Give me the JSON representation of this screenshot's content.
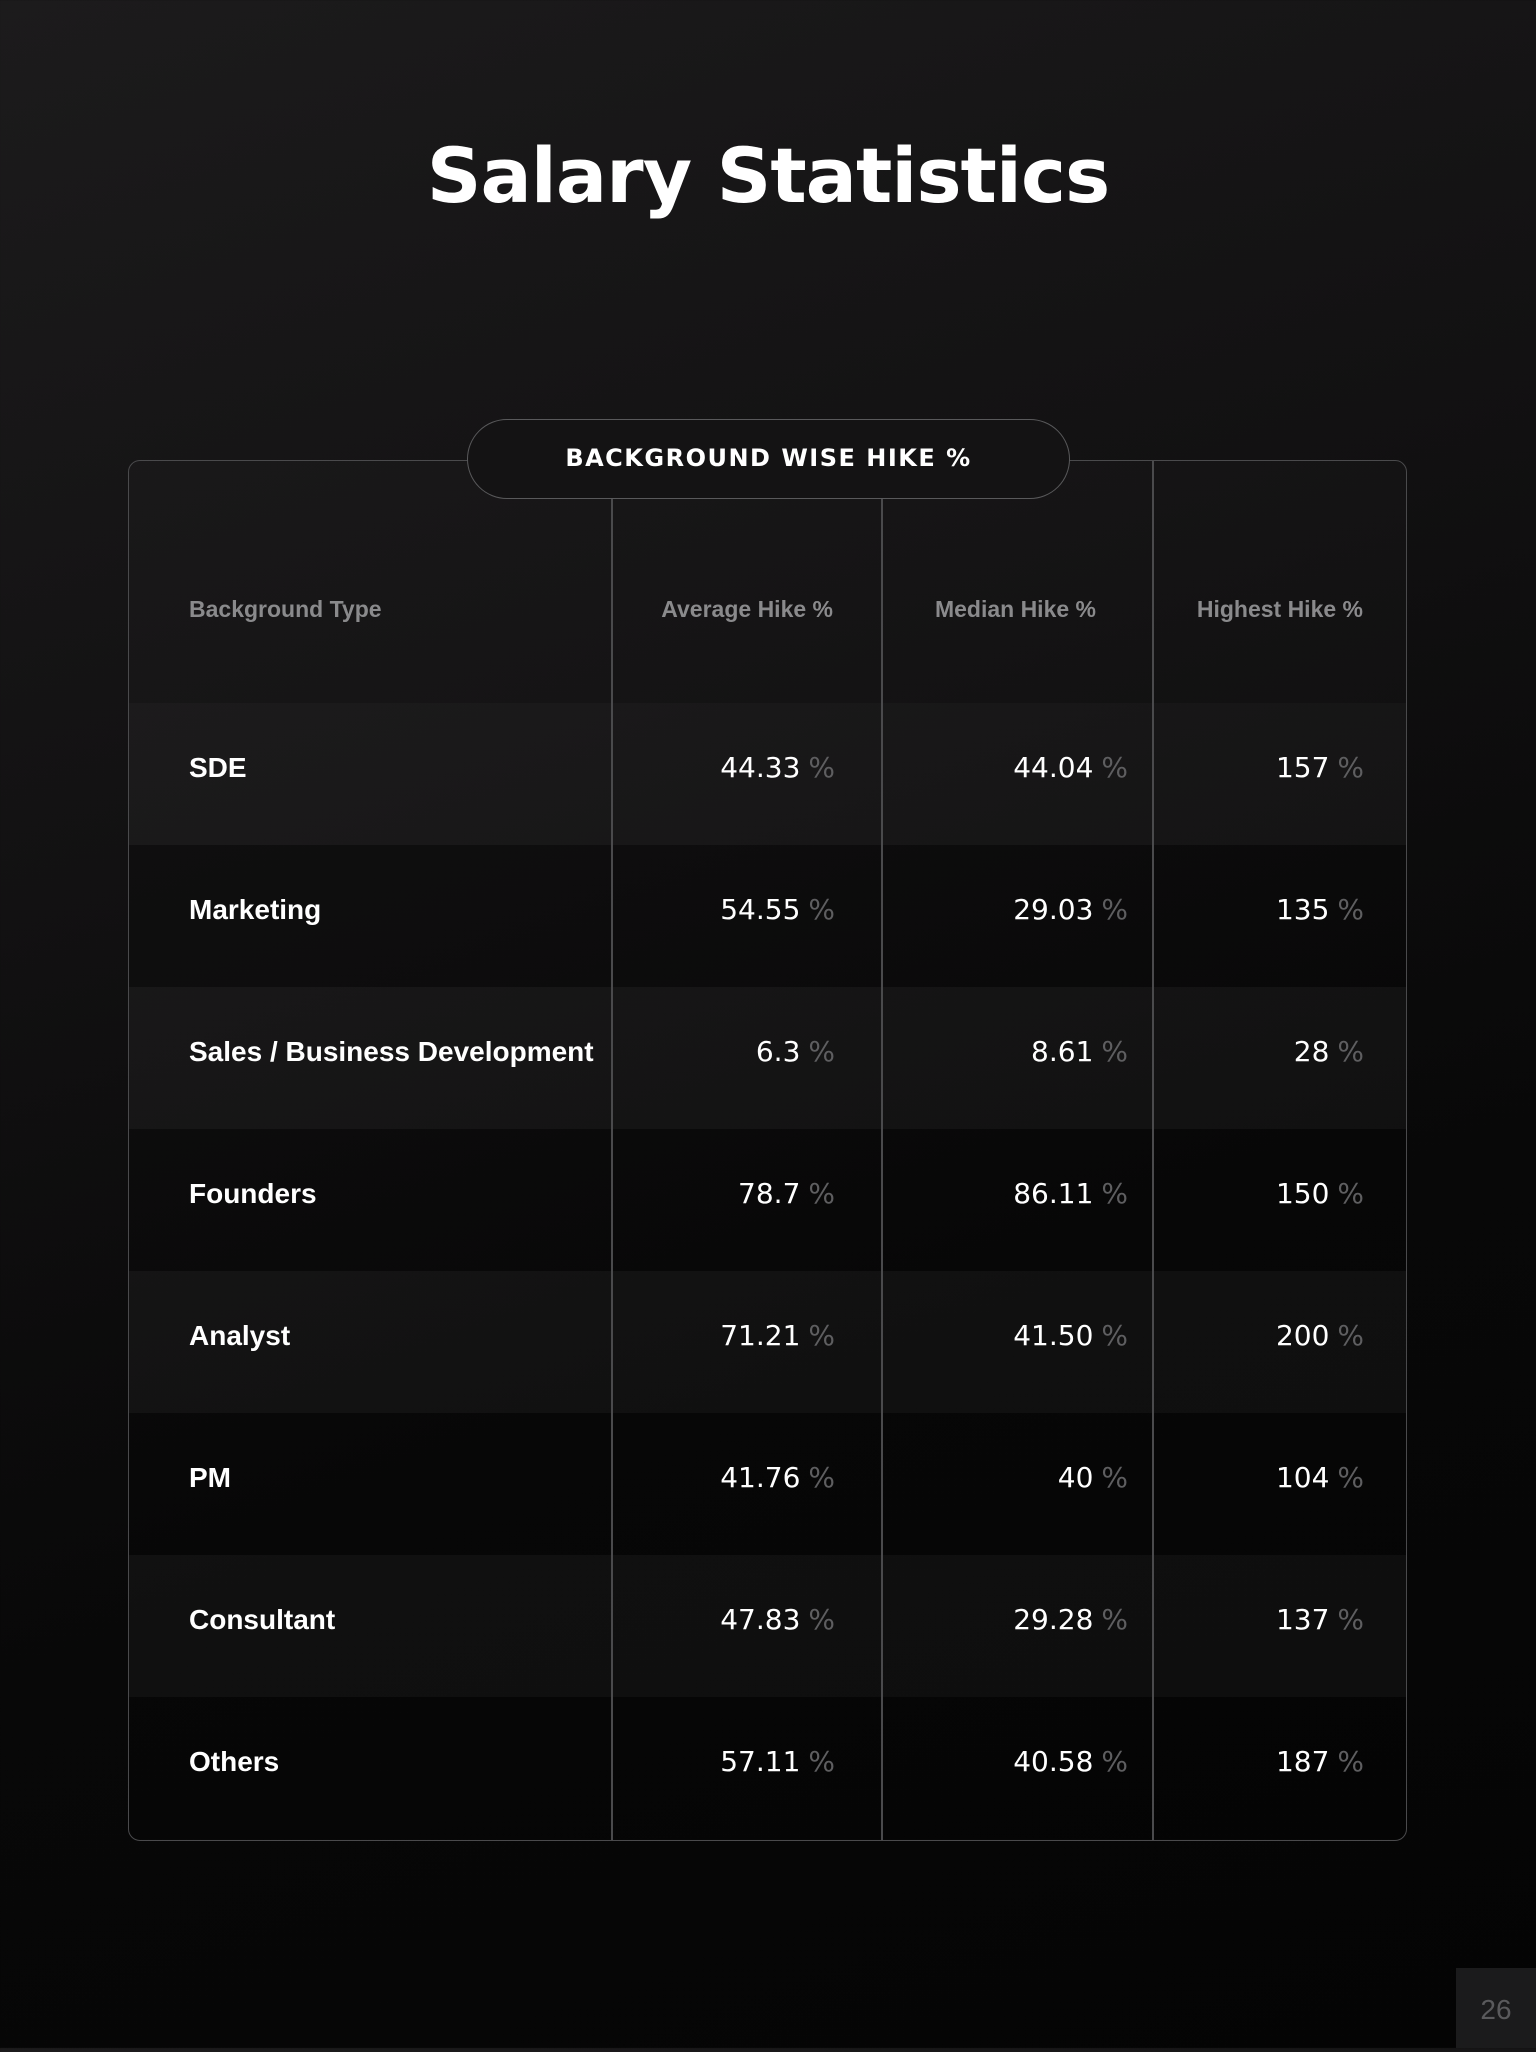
{
  "title": "Salary Statistics",
  "table_label": "BACKGROUND WISE HIKE %",
  "columns": [
    "Background Type",
    "Average Hike %",
    "Median Hike %",
    "Highest Hike %"
  ],
  "pct_symbol": "%",
  "rows": [
    {
      "type": "SDE",
      "average": "44.33",
      "median": "44.04",
      "highest": "157"
    },
    {
      "type": "Marketing",
      "average": "54.55",
      "median": "29.03",
      "highest": "135"
    },
    {
      "type": "Sales / Business Development",
      "average": "6.3",
      "median": "8.61",
      "highest": "28"
    },
    {
      "type": "Founders",
      "average": "78.7",
      "median": "86.11",
      "highest": "150"
    },
    {
      "type": "Analyst",
      "average": "71.21",
      "median": "41.50",
      "highest": "200"
    },
    {
      "type": "PM",
      "average": "41.76",
      "median": "40",
      "highest": "104"
    },
    {
      "type": "Consultant",
      "average": "47.83",
      "median": "29.28",
      "highest": "137"
    },
    {
      "type": "Others",
      "average": "57.11",
      "median": "40.58",
      "highest": "187"
    }
  ],
  "page_number": "26"
}
